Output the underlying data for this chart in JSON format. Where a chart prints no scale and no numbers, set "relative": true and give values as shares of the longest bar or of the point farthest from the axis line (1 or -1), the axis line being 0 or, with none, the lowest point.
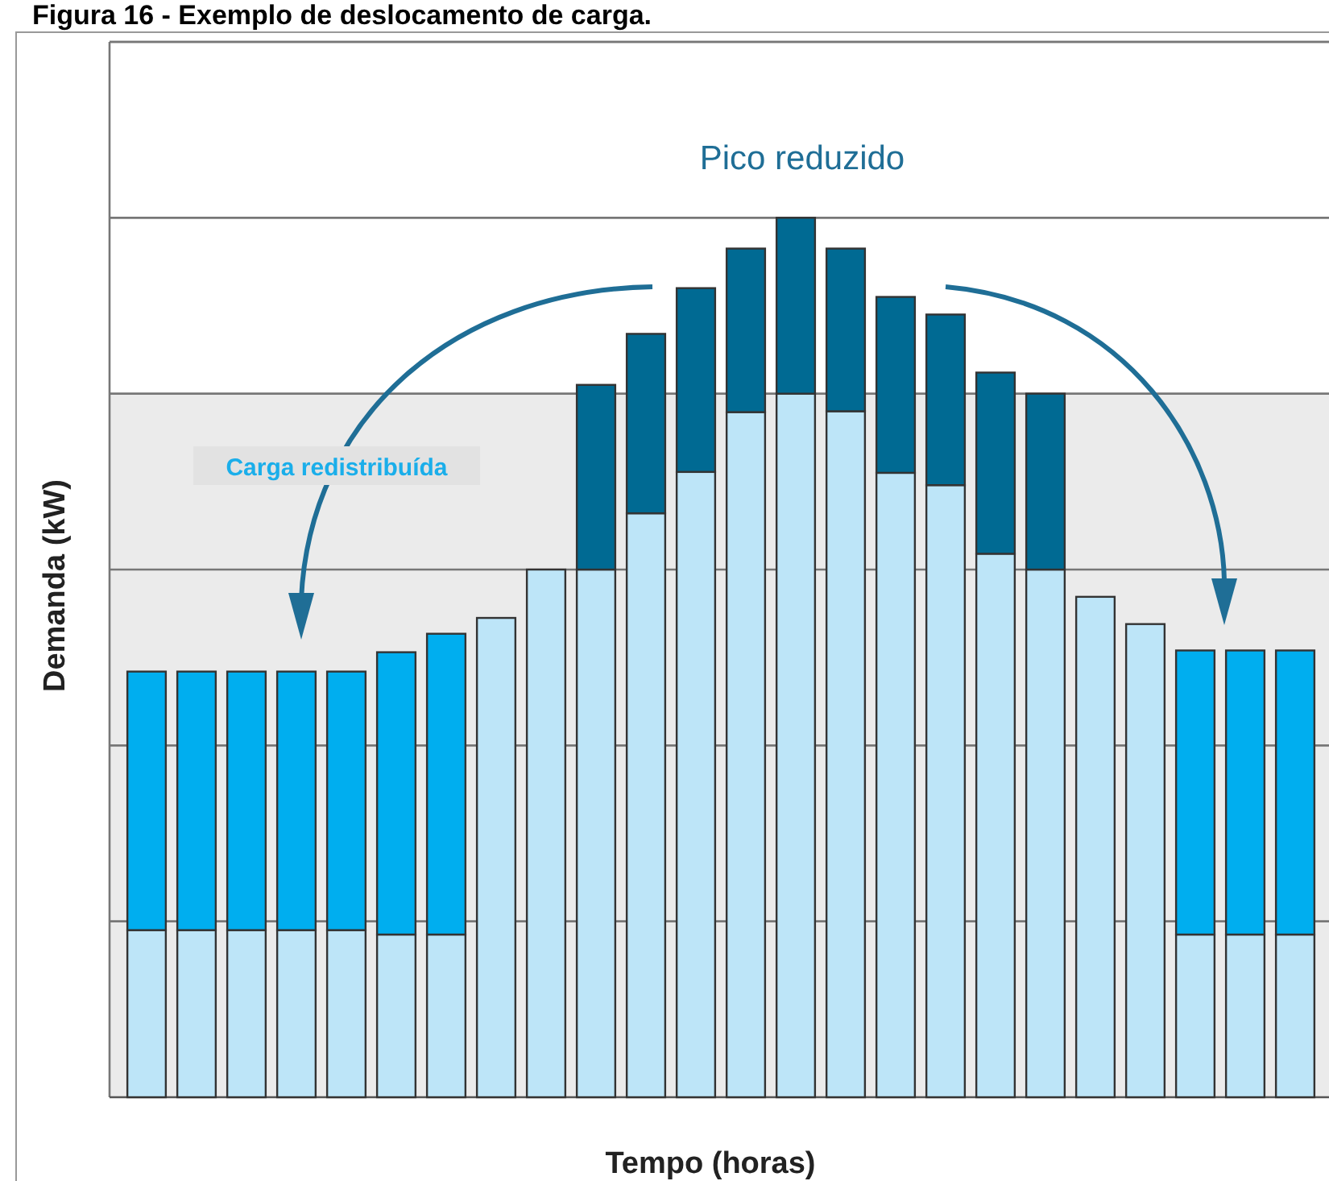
{
  "chart_data": {
    "type": "bar",
    "title": "Figura 16 - Exemplo de deslocamento de carga.",
    "xlabel": "Tempo (horas)",
    "ylabel": "Demanda (kW)",
    "categories": [
      null,
      null,
      null,
      null,
      null,
      null,
      null,
      null,
      null,
      null,
      null,
      null,
      null,
      null,
      null,
      null,
      null,
      null,
      null,
      null,
      null,
      null,
      null,
      null
    ],
    "stacked": true,
    "relative": true,
    "grid": "y",
    "bands": [
      {
        "axis": "y",
        "from": 0,
        "to": 0.8,
        "color": "#ebebeb"
      }
    ],
    "series": [
      {
        "color": "#bde5f8",
        "values": [
          0.19,
          0.19,
          0.19,
          0.19,
          0.19,
          0.185,
          0.185,
          0.545,
          0.6,
          0.6,
          0.664,
          0.711,
          0.779,
          0.8,
          0.78,
          0.71,
          0.696,
          0.618,
          0.6,
          0.569,
          0.538,
          0.185,
          0.185,
          0.185
        ]
      },
      {
        "color": "#00aeef",
        "values": [
          0.294,
          0.294,
          0.294,
          0.294,
          0.294,
          0.321,
          0.342,
          null,
          null,
          null,
          null,
          null,
          null,
          null,
          null,
          null,
          null,
          null,
          null,
          null,
          null,
          0.323,
          0.323,
          0.323
        ]
      },
      {
        "color": "#006a93",
        "values": [
          null,
          null,
          null,
          null,
          null,
          null,
          null,
          null,
          null,
          0.21,
          0.204,
          0.209,
          0.186,
          0.2,
          0.185,
          0.2,
          0.194,
          0.206,
          0.2,
          null,
          null,
          null,
          null,
          null
        ]
      }
    ],
    "annotations": [
      "Pico reduzido",
      "Carga redistribuída"
    ]
  }
}
